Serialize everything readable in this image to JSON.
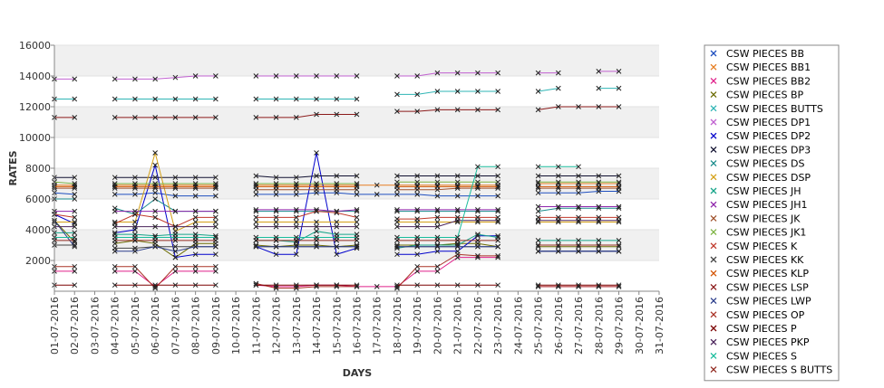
{
  "chart_data": {
    "type": "line",
    "xlabel": "DAYS",
    "ylabel": "RATES",
    "ylim": [
      0,
      16000
    ],
    "yticks": [
      2000,
      4000,
      6000,
      8000,
      10000,
      12000,
      14000,
      16000
    ],
    "grid": "alternating horizontal bands",
    "legend_position": "right",
    "categories": [
      "01-07-2016",
      "02-07-2016",
      "03-07-2016",
      "04-07-2016",
      "05-07-2016",
      "06-07-2016",
      "07-07-2016",
      "08-07-2016",
      "09-07-2016",
      "10-07-2016",
      "11-07-2016",
      "12-07-2016",
      "13-07-2016",
      "14-07-2016",
      "15-07-2016",
      "16-07-2016",
      "17-07-2016",
      "18-07-2016",
      "19-07-2016",
      "20-07-2016",
      "21-07-2016",
      "22-07-2016",
      "23-07-2016",
      "24-07-2016",
      "25-07-2016",
      "26-07-2016",
      "27-07-2016",
      "28-07-2016",
      "29-07-2016",
      "30-07-2016",
      "31-07-2016"
    ],
    "series": [
      {
        "name": "CSW PIECES BB",
        "color": "#1f4fbf",
        "values": [
          6400,
          6300,
          null,
          6300,
          6300,
          6400,
          6200,
          6200,
          6200,
          null,
          6300,
          6300,
          6300,
          6400,
          6400,
          6300,
          6300,
          6300,
          6300,
          6200,
          6200,
          6200,
          6200,
          null,
          6400,
          6400,
          6400,
          6500,
          6500,
          null,
          null
        ]
      },
      {
        "name": "CSW PIECES BB1",
        "color": "#e67e22",
        "values": [
          6900,
          6900,
          null,
          6900,
          6900,
          6900,
          6900,
          6900,
          6900,
          null,
          6900,
          6900,
          6900,
          6900,
          6900,
          6900,
          6900,
          6900,
          6900,
          6900,
          6900,
          6900,
          6900,
          null,
          7000,
          7000,
          7000,
          7000,
          7000,
          null,
          null
        ]
      },
      {
        "name": "CSW PIECES BB2",
        "color": "#e0208a",
        "values": [
          1300,
          1300,
          null,
          1300,
          1300,
          300,
          1300,
          1300,
          1300,
          null,
          400,
          300,
          300,
          400,
          400,
          300,
          300,
          300,
          1300,
          1300,
          2200,
          2200,
          2200,
          null,
          300,
          300,
          300,
          300,
          300,
          null,
          null
        ]
      },
      {
        "name": "CSW PIECES BP",
        "color": "#6b6b00",
        "values": [
          4600,
          3200,
          null,
          3100,
          3300,
          3100,
          2200,
          3100,
          3100,
          null,
          3000,
          2900,
          3000,
          3000,
          2900,
          3000,
          null,
          3000,
          3000,
          3000,
          3100,
          3100,
          2900,
          null,
          2900,
          2900,
          2900,
          2900,
          2900,
          null,
          null
        ]
      },
      {
        "name": "CSW PIECES BUTTS",
        "color": "#2fb5b5",
        "values": [
          12500,
          12500,
          null,
          12500,
          12500,
          12500,
          12500,
          12500,
          12500,
          null,
          12500,
          12500,
          12500,
          12500,
          12500,
          12500,
          null,
          12800,
          12800,
          13000,
          13000,
          13000,
          13000,
          null,
          13000,
          13200,
          null,
          13200,
          13200,
          null,
          null
        ]
      },
      {
        "name": "CSW PIECES DP1",
        "color": "#c060d0",
        "values": [
          13800,
          13800,
          null,
          13800,
          13800,
          13800,
          13900,
          14000,
          14000,
          null,
          14000,
          14000,
          14000,
          14000,
          14000,
          14000,
          null,
          14000,
          14000,
          14200,
          14200,
          14200,
          14200,
          null,
          14200,
          14200,
          null,
          14300,
          14300,
          null,
          null
        ]
      },
      {
        "name": "CSW PIECES DP2",
        "color": "#0000cc",
        "values": [
          5000,
          4400,
          null,
          3800,
          4000,
          8200,
          2200,
          2400,
          2400,
          null,
          2900,
          2400,
          2400,
          9000,
          2400,
          2800,
          null,
          2400,
          2400,
          2600,
          2600,
          3600,
          3600,
          null,
          2600,
          2600,
          2600,
          2600,
          2600,
          null,
          null
        ]
      },
      {
        "name": "CSW PIECES DP3",
        "color": "#101030",
        "values": [
          7400,
          7400,
          null,
          7400,
          7400,
          7400,
          7400,
          7400,
          7400,
          null,
          7500,
          7400,
          7400,
          7500,
          7500,
          7500,
          null,
          7500,
          7500,
          7500,
          7500,
          7500,
          7500,
          null,
          7500,
          7500,
          7500,
          7500,
          7500,
          null,
          null
        ]
      },
      {
        "name": "CSW PIECES DS",
        "color": "#1a8c8c",
        "values": [
          6000,
          6000,
          null,
          5400,
          5000,
          6000,
          5200,
          5200,
          5200,
          null,
          5200,
          5200,
          5200,
          5200,
          5200,
          5200,
          null,
          5200,
          5200,
          5200,
          5200,
          5200,
          5200,
          null,
          5200,
          5400,
          5400,
          5400,
          5400,
          null,
          null
        ]
      },
      {
        "name": "CSW PIECES DSP",
        "color": "#d4a017",
        "values": [
          4500,
          4500,
          null,
          4500,
          4500,
          9000,
          3900,
          4500,
          4500,
          null,
          4500,
          4500,
          4500,
          4500,
          4500,
          4500,
          null,
          4500,
          4500,
          4500,
          4500,
          4500,
          4500,
          null,
          4500,
          4500,
          4500,
          4500,
          4500,
          null,
          null
        ]
      },
      {
        "name": "CSW PIECES JH",
        "color": "#17a589",
        "values": [
          3800,
          3800,
          null,
          3700,
          3700,
          3600,
          3700,
          3700,
          3600,
          null,
          3300,
          3300,
          3200,
          3900,
          3700,
          3700,
          null,
          2800,
          3000,
          3000,
          3000,
          3700,
          3500,
          null,
          3300,
          3300,
          3300,
          3300,
          3300,
          null,
          null
        ]
      },
      {
        "name": "CSW PIECES JH1",
        "color": "#8e24aa",
        "values": [
          5200,
          5200,
          null,
          5200,
          5200,
          5200,
          5200,
          5200,
          5200,
          null,
          5300,
          5300,
          5300,
          5300,
          5200,
          5300,
          null,
          5300,
          5300,
          5300,
          5300,
          5300,
          5300,
          null,
          5500,
          5500,
          5500,
          5500,
          5500,
          null,
          null
        ]
      },
      {
        "name": "CSW PIECES JK",
        "color": "#a0522d",
        "values": [
          6700,
          6700,
          null,
          6700,
          6700,
          6700,
          6700,
          6700,
          6700,
          null,
          6600,
          6600,
          6600,
          6600,
          6600,
          6600,
          null,
          6600,
          6600,
          6600,
          6700,
          6700,
          6700,
          null,
          6700,
          6700,
          6700,
          6700,
          6700,
          null,
          null
        ]
      },
      {
        "name": "CSW PIECES JK1",
        "color": "#7cb342",
        "values": [
          7100,
          7000,
          null,
          7000,
          7000,
          7000,
          7000,
          7000,
          7000,
          null,
          7000,
          7000,
          7000,
          7000,
          7000,
          7000,
          null,
          7100,
          7100,
          7100,
          7100,
          7100,
          7100,
          null,
          7100,
          7100,
          7100,
          7100,
          7100,
          null,
          null
        ]
      },
      {
        "name": "CSW PIECES K",
        "color": "#c0392b",
        "values": [
          5000,
          4800,
          null,
          4400,
          5000,
          4800,
          4200,
          4800,
          4800,
          null,
          4800,
          4800,
          4800,
          5200,
          5100,
          4800,
          null,
          4700,
          4700,
          4800,
          4800,
          4800,
          4800,
          null,
          4800,
          4800,
          4800,
          4800,
          4800,
          null,
          null
        ]
      },
      {
        "name": "CSW PIECES KK",
        "color": "#444444",
        "values": [
          3000,
          3000,
          null,
          2800,
          2800,
          2900,
          2900,
          2900,
          2900,
          null,
          2900,
          2900,
          2900,
          2900,
          2900,
          2900,
          null,
          2900,
          2900,
          2900,
          2900,
          2900,
          2900,
          null,
          2600,
          2600,
          2600,
          2600,
          2600,
          null,
          null
        ]
      },
      {
        "name": "CSW PIECES KLP",
        "color": "#d35400",
        "values": [
          6800,
          6800,
          null,
          6800,
          6800,
          6800,
          6800,
          6800,
          6800,
          null,
          6800,
          6800,
          6800,
          6800,
          6800,
          6800,
          null,
          6800,
          6800,
          6800,
          6800,
          6800,
          6800,
          null,
          6800,
          6800,
          6800,
          6800,
          6800,
          null,
          null
        ]
      },
      {
        "name": "CSW PIECES LSP",
        "color": "#8b1a1a",
        "values": [
          11300,
          11300,
          null,
          11300,
          11300,
          11300,
          11300,
          11300,
          11300,
          null,
          11300,
          11300,
          11300,
          11500,
          11500,
          11500,
          null,
          11700,
          11700,
          11800,
          11800,
          11800,
          11800,
          null,
          11800,
          12000,
          12000,
          12000,
          12000,
          null,
          null
        ]
      },
      {
        "name": "CSW PIECES LWP",
        "color": "#2c3e8c",
        "values": [
          4600,
          2900,
          null,
          2600,
          2600,
          2900,
          2600,
          2900,
          2900,
          null,
          2900,
          2900,
          2900,
          2900,
          2900,
          2900,
          null,
          2900,
          2900,
          2900,
          2900,
          2900,
          2900,
          null,
          2600,
          2600,
          2600,
          2600,
          2600,
          null,
          null
        ]
      },
      {
        "name": "CSW PIECES OP",
        "color": "#a93226",
        "values": [
          1600,
          1600,
          null,
          1600,
          1600,
          200,
          1600,
          1600,
          1600,
          null,
          500,
          200,
          200,
          300,
          300,
          300,
          null,
          200,
          1600,
          1600,
          2400,
          2300,
          2300,
          null,
          300,
          300,
          300,
          300,
          300,
          null,
          null
        ]
      },
      {
        "name": "CSW PIECES P",
        "color": "#7b0000",
        "values": [
          400,
          400,
          null,
          400,
          400,
          400,
          400,
          400,
          400,
          null,
          400,
          400,
          400,
          400,
          400,
          400,
          null,
          400,
          400,
          400,
          400,
          400,
          400,
          null,
          400,
          400,
          400,
          400,
          400,
          null,
          null
        ]
      },
      {
        "name": "CSW PIECES PKP",
        "color": "#4a235a",
        "values": [
          4200,
          4200,
          null,
          4200,
          4200,
          4200,
          4200,
          4200,
          4200,
          null,
          4200,
          4200,
          4200,
          4200,
          4200,
          4200,
          null,
          4200,
          4200,
          4200,
          4600,
          4600,
          4600,
          null,
          4600,
          4600,
          4600,
          4600,
          4600,
          null,
          null
        ]
      },
      {
        "name": "CSW PIECES S",
        "color": "#1abc9c",
        "values": [
          3500,
          3500,
          null,
          3500,
          3500,
          3500,
          3500,
          3500,
          3500,
          null,
          3500,
          3500,
          3500,
          3500,
          3500,
          3500,
          null,
          3500,
          3500,
          3500,
          3500,
          8100,
          8100,
          null,
          8100,
          8100,
          8100,
          null,
          null,
          null,
          null
        ]
      },
      {
        "name": "CSW PIECES S BUTTS",
        "color": "#922b21",
        "values": [
          3300,
          3300,
          null,
          3300,
          3300,
          3300,
          3300,
          3300,
          3300,
          null,
          3300,
          3300,
          3300,
          3300,
          3300,
          3300,
          null,
          3300,
          3300,
          3300,
          3300,
          3300,
          3300,
          null,
          3000,
          3000,
          3000,
          3000,
          3000,
          null,
          null
        ]
      }
    ]
  }
}
